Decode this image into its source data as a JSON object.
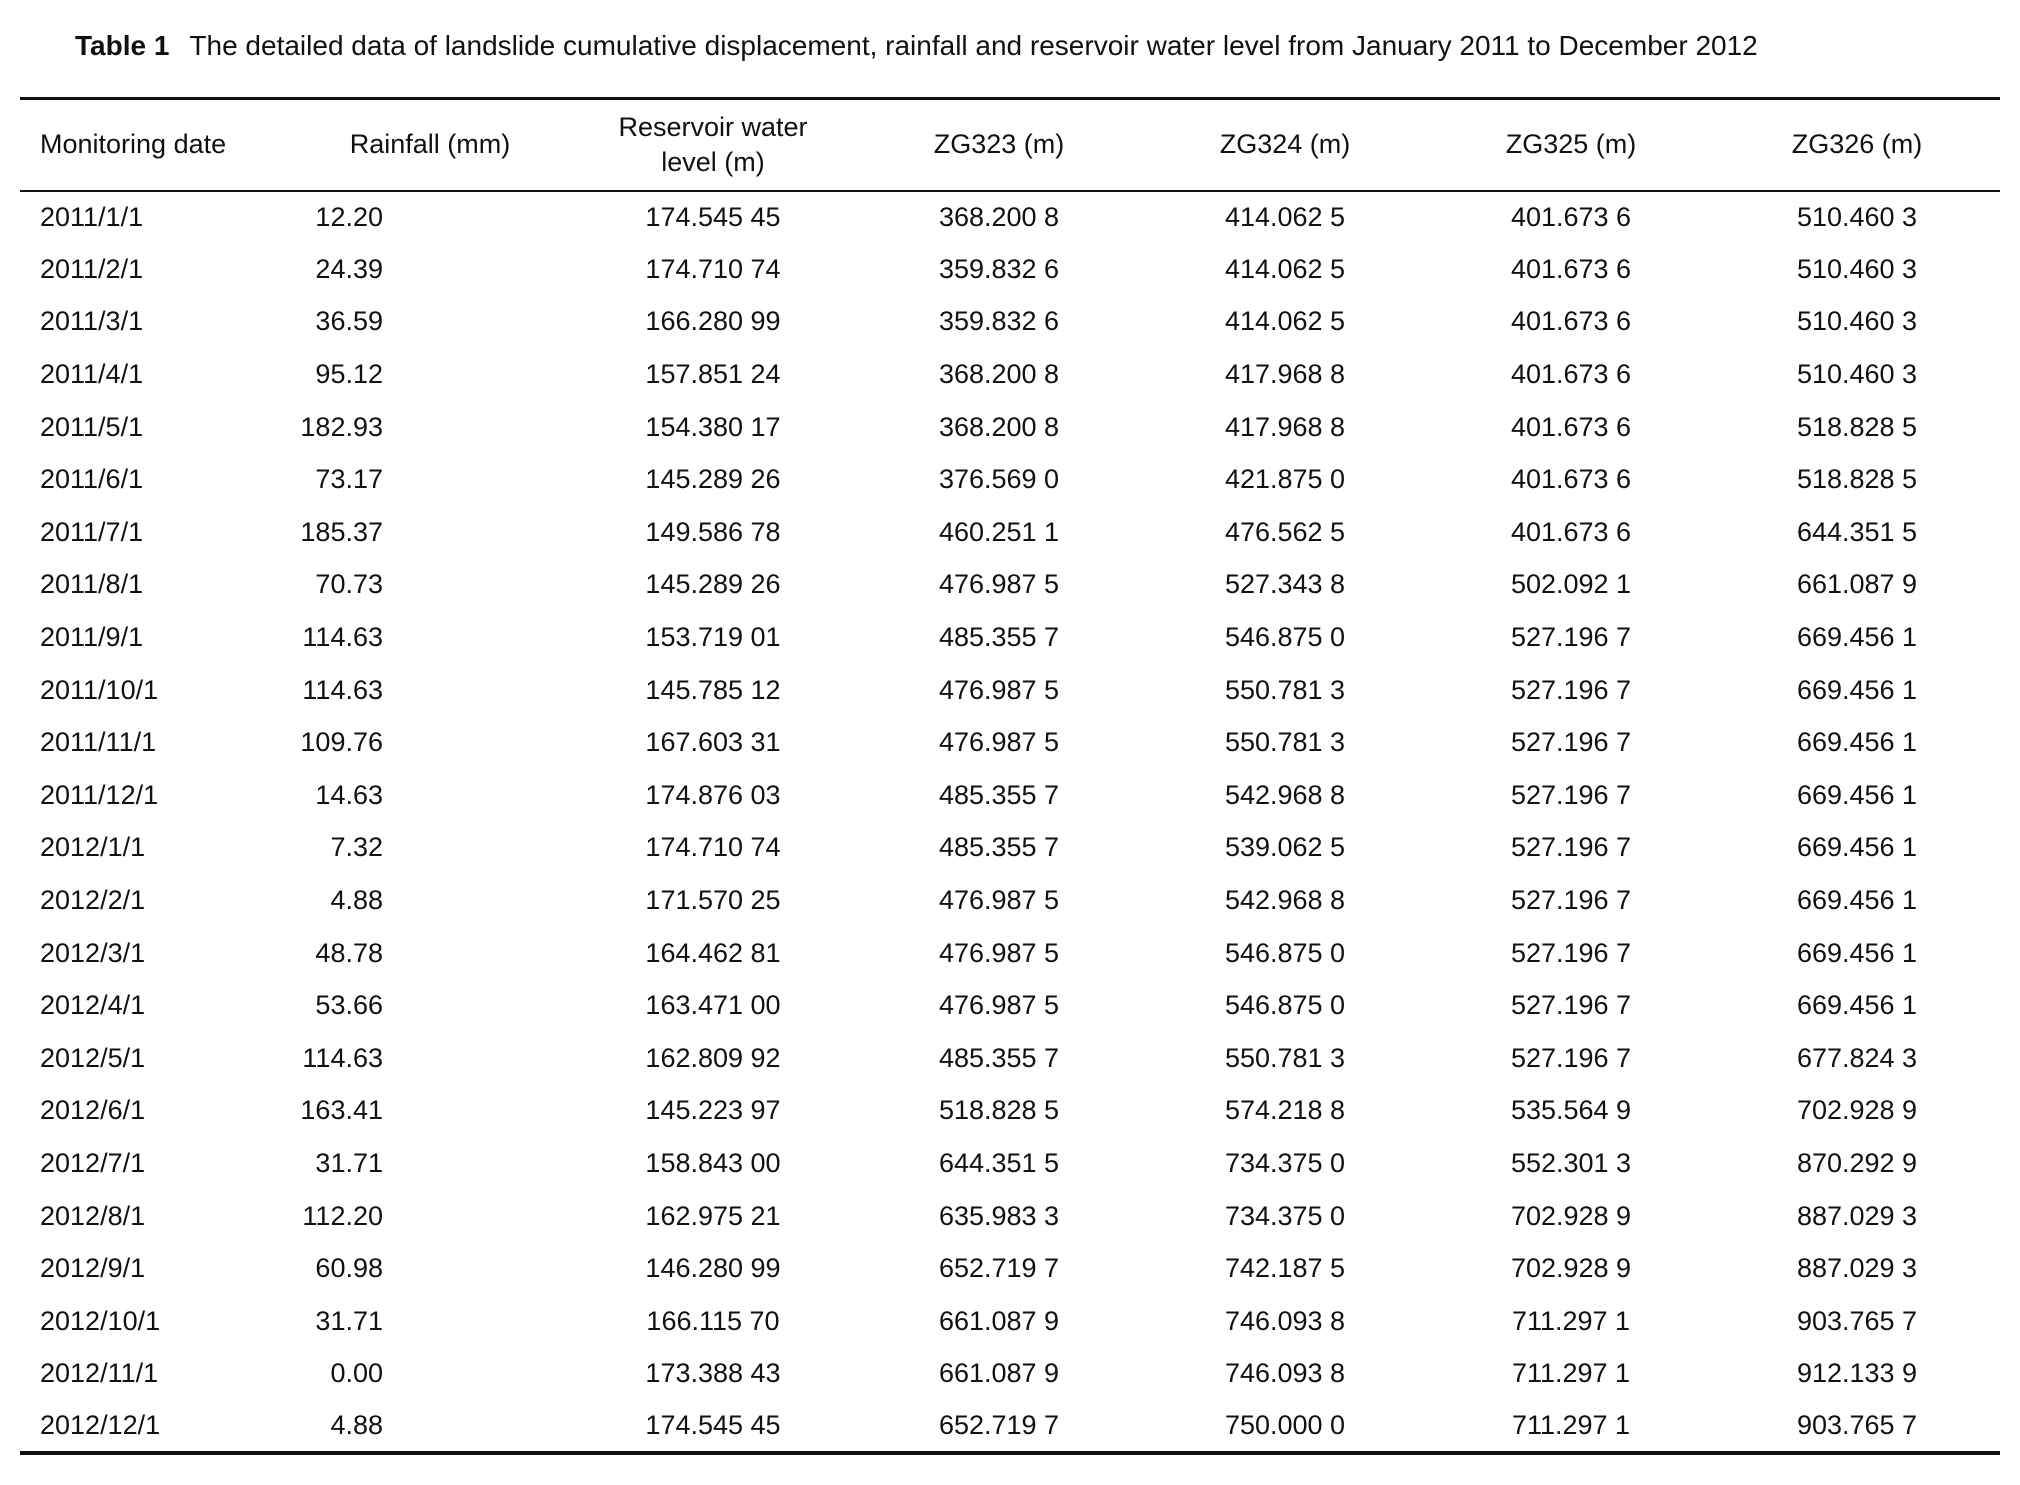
{
  "title": {
    "label": "Table 1",
    "text": "The detailed data of landslide cumulative displacement, rainfall and reservoir water level from January 2011 to December 2012"
  },
  "table": {
    "columns": [
      "Monitoring date",
      "Rainfall (mm)",
      "Reservoir water level (m)",
      "ZG323 (m)",
      "ZG324 (m)",
      "ZG325 (m)",
      "ZG326 (m)"
    ],
    "rows": [
      [
        "2011/1/1",
        "12.20",
        "174.545 45",
        "368.200 8",
        "414.062 5",
        "401.673 6",
        "510.460 3"
      ],
      [
        "2011/2/1",
        "24.39",
        "174.710 74",
        "359.832 6",
        "414.062 5",
        "401.673 6",
        "510.460 3"
      ],
      [
        "2011/3/1",
        "36.59",
        "166.280 99",
        "359.832 6",
        "414.062 5",
        "401.673 6",
        "510.460 3"
      ],
      [
        "2011/4/1",
        "95.12",
        "157.851 24",
        "368.200 8",
        "417.968 8",
        "401.673 6",
        "510.460 3"
      ],
      [
        "2011/5/1",
        "182.93",
        "154.380 17",
        "368.200 8",
        "417.968 8",
        "401.673 6",
        "518.828 5"
      ],
      [
        "2011/6/1",
        "73.17",
        "145.289 26",
        "376.569 0",
        "421.875 0",
        "401.673 6",
        "518.828 5"
      ],
      [
        "2011/7/1",
        "185.37",
        "149.586 78",
        "460.251 1",
        "476.562 5",
        "401.673 6",
        "644.351 5"
      ],
      [
        "2011/8/1",
        "70.73",
        "145.289 26",
        "476.987 5",
        "527.343 8",
        "502.092 1",
        "661.087 9"
      ],
      [
        "2011/9/1",
        "114.63",
        "153.719 01",
        "485.355 7",
        "546.875 0",
        "527.196 7",
        "669.456 1"
      ],
      [
        "2011/10/1",
        "114.63",
        "145.785 12",
        "476.987 5",
        "550.781 3",
        "527.196 7",
        "669.456 1"
      ],
      [
        "2011/11/1",
        "109.76",
        "167.603 31",
        "476.987 5",
        "550.781 3",
        "527.196 7",
        "669.456 1"
      ],
      [
        "2011/12/1",
        "14.63",
        "174.876 03",
        "485.355 7",
        "542.968 8",
        "527.196 7",
        "669.456 1"
      ],
      [
        "2012/1/1",
        "7.32",
        "174.710 74",
        "485.355 7",
        "539.062 5",
        "527.196 7",
        "669.456 1"
      ],
      [
        "2012/2/1",
        "4.88",
        "171.570 25",
        "476.987 5",
        "542.968 8",
        "527.196 7",
        "669.456 1"
      ],
      [
        "2012/3/1",
        "48.78",
        "164.462 81",
        "476.987 5",
        "546.875 0",
        "527.196 7",
        "669.456 1"
      ],
      [
        "2012/4/1",
        "53.66",
        "163.471 00",
        "476.987 5",
        "546.875 0",
        "527.196 7",
        "669.456 1"
      ],
      [
        "2012/5/1",
        "114.63",
        "162.809 92",
        "485.355 7",
        "550.781 3",
        "527.196 7",
        "677.824 3"
      ],
      [
        "2012/6/1",
        "163.41",
        "145.223 97",
        "518.828 5",
        "574.218 8",
        "535.564 9",
        "702.928 9"
      ],
      [
        "2012/7/1",
        "31.71",
        "158.843 00",
        "644.351 5",
        "734.375 0",
        "552.301 3",
        "870.292 9"
      ],
      [
        "2012/8/1",
        "112.20",
        "162.975 21",
        "635.983 3",
        "734.375 0",
        "702.928 9",
        "887.029 3"
      ],
      [
        "2012/9/1",
        "60.98",
        "146.280 99",
        "652.719 7",
        "742.187 5",
        "702.928 9",
        "887.029 3"
      ],
      [
        "2012/10/1",
        "31.71",
        "166.115 70",
        "661.087 9",
        "746.093 8",
        "711.297 1",
        "903.765 7"
      ],
      [
        "2012/11/1",
        "0.00",
        "173.388 43",
        "661.087 9",
        "746.093 8",
        "711.297 1",
        "912.133 9"
      ],
      [
        "2012/12/1",
        "4.88",
        "174.545 45",
        "652.719 7",
        "750.000 0",
        "711.297 1",
        "903.765 7"
      ]
    ]
  }
}
